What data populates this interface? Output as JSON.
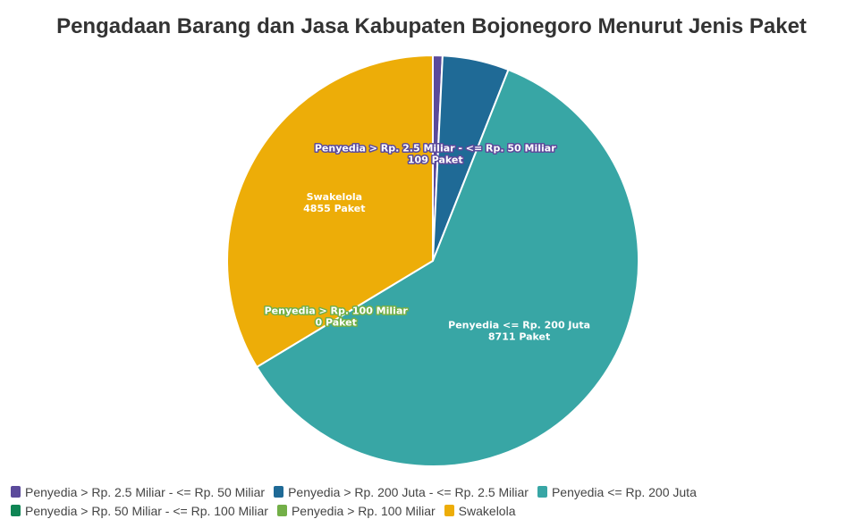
{
  "chart_data": {
    "type": "pie",
    "title": "Pengadaan Barang dan Jasa Kabupaten Bojonegoro Menurut Jenis Paket",
    "legend_position": "bottom",
    "slices": [
      {
        "name": "Penyedia > Rp. 2.5 Miliar - <= Rp. 50 Miliar",
        "value": 109,
        "value_label": "109 Paket",
        "color": "#5b4a9b",
        "label_shown": true
      },
      {
        "name": "Penyedia > Rp. 200 Juta - <= Rp. 2.5 Miliar",
        "value": 755,
        "value_label": "",
        "color": "#1f6a96",
        "label_shown": false
      },
      {
        "name": "Penyedia <= Rp. 200 Juta",
        "value": 8711,
        "value_label": "8711 Paket",
        "color": "#38a6a5",
        "label_shown": true
      },
      {
        "name": "Penyedia > Rp. 50 Miliar - <= Rp. 100 Miliar",
        "value": 0,
        "value_label": "",
        "color": "#0f8554",
        "label_shown": false
      },
      {
        "name": "Penyedia > Rp. 100 Miliar",
        "value": 0,
        "value_label": "0 Paket",
        "color": "#73af48",
        "label_shown": true
      },
      {
        "name": "Swakelola",
        "value": 4855,
        "value_label": "4855 Paket",
        "color": "#edad08",
        "label_shown": true
      }
    ]
  }
}
